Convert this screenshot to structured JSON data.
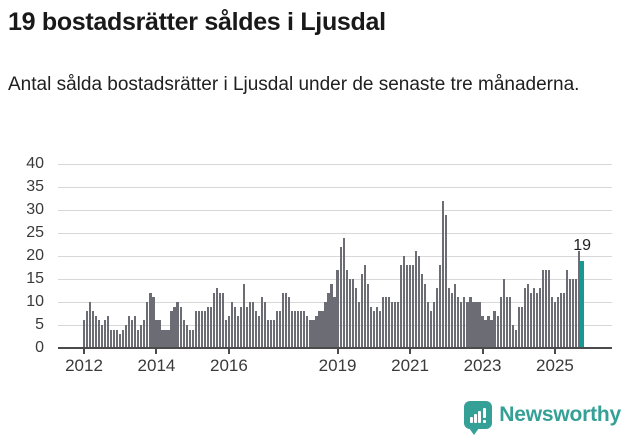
{
  "header": {
    "title": "19 bostadsrätter såldes i Ljusdal",
    "subtitle": "Antal sålda bostadsrätter i Ljusdal under de senaste tre månaderna."
  },
  "chart_data": {
    "type": "bar",
    "title": "19 bostadsrätter såldes i Ljusdal",
    "xlabel": "",
    "ylabel": "",
    "ylim": [
      0,
      40
    ],
    "yticks": [
      0,
      5,
      10,
      15,
      20,
      25,
      30,
      35,
      40
    ],
    "grid": true,
    "frequency": "monthly",
    "start_month": "2012-01",
    "end_month": "2025-10",
    "values": [
      6,
      8,
      10,
      8,
      7,
      6,
      5,
      6,
      7,
      4,
      4,
      4,
      3,
      4,
      5,
      7,
      6,
      7,
      4,
      5,
      6,
      10,
      12,
      11,
      6,
      6,
      4,
      4,
      4,
      8,
      9,
      10,
      9,
      6,
      5,
      4,
      4,
      8,
      8,
      8,
      8,
      9,
      9,
      12,
      13,
      12,
      12,
      6,
      7,
      10,
      9,
      7,
      9,
      14,
      9,
      10,
      10,
      8,
      7,
      11,
      10,
      6,
      6,
      6,
      8,
      8,
      12,
      12,
      11,
      8,
      8,
      8,
      8,
      8,
      7,
      6,
      6,
      7,
      8,
      8,
      10,
      12,
      14,
      11,
      17,
      22,
      24,
      17,
      15,
      15,
      13,
      10,
      16,
      18,
      14,
      9,
      8,
      9,
      8,
      11,
      11,
      11,
      10,
      10,
      10,
      18,
      20,
      18,
      18,
      18,
      21,
      20,
      16,
      14,
      10,
      8,
      10,
      13,
      18,
      32,
      29,
      13,
      12,
      14,
      11,
      10,
      11,
      10,
      11,
      10,
      10,
      10,
      7,
      6,
      7,
      6,
      8,
      7,
      11,
      15,
      11,
      11,
      5,
      4,
      9,
      9,
      13,
      14,
      12,
      13,
      12,
      13,
      17,
      17,
      17,
      11,
      10,
      11,
      12,
      12,
      17,
      15,
      15,
      15,
      21,
      19
    ],
    "xticks": [
      {
        "label": "2012",
        "month_index": 0
      },
      {
        "label": "2014",
        "month_index": 24
      },
      {
        "label": "2016",
        "month_index": 48
      },
      {
        "label": "2019",
        "month_index": 84
      },
      {
        "label": "2021",
        "month_index": 108
      },
      {
        "label": "2023",
        "month_index": 132
      },
      {
        "label": "2025",
        "month_index": 156
      }
    ],
    "highlight_last": {
      "value": 19,
      "label": "19"
    },
    "colors": {
      "bar": "#6c6c74",
      "highlight": "#189890",
      "gridline": "#d8d8d8",
      "axis": "#4b4b4b",
      "tick_text": "#3a3a3a"
    }
  },
  "footer": {
    "brand": "Newsworthy",
    "brand_color": "#35a096",
    "logo": "newsworthy-badge"
  }
}
